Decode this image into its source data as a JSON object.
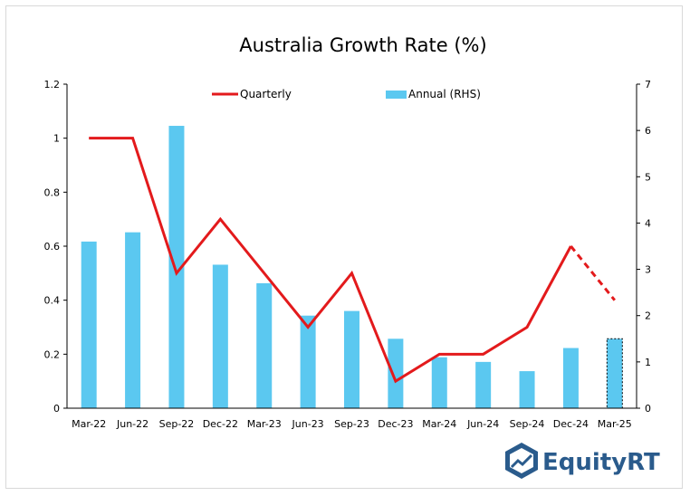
{
  "chart_data": {
    "type": "bar+line",
    "title": "Australia Growth Rate (%)",
    "categories": [
      "Mar-22",
      "Jun-22",
      "Sep-22",
      "Dec-22",
      "Mar-23",
      "Jun-23",
      "Sep-23",
      "Dec-23",
      "Mar-24",
      "Jun-24",
      "Sep-24",
      "Dec-24",
      "Mar-25"
    ],
    "series": [
      {
        "name": "Quarterly",
        "type": "line",
        "axis": "left",
        "color": "#e31a1c",
        "values": [
          1.0,
          1.0,
          0.5,
          0.7,
          0.5,
          0.3,
          0.5,
          0.1,
          0.2,
          0.2,
          0.3,
          0.6,
          0.4
        ],
        "dashed_from_index": 11
      },
      {
        "name": "Annual (RHS)",
        "type": "bar",
        "axis": "right",
        "color": "#5bc8f0",
        "values": [
          3.6,
          3.8,
          6.1,
          3.1,
          2.7,
          2.0,
          2.1,
          1.5,
          1.1,
          1.0,
          0.8,
          1.3,
          1.5
        ],
        "dashed_outline_index": 12
      }
    ],
    "left_axis": {
      "ylim": [
        0,
        1.2
      ],
      "ticks": [
        "0",
        "0.2",
        "0.4",
        "0.6",
        "0.8",
        "1",
        "1.2"
      ]
    },
    "right_axis": {
      "ylim": [
        0,
        7
      ],
      "ticks": [
        "0",
        "1",
        "2",
        "3",
        "4",
        "5",
        "6",
        "7"
      ]
    },
    "legend_position": "top-center",
    "grid": false
  },
  "branding": {
    "logo_text_1": "Equity",
    "logo_text_2": "RT",
    "brand_color": "#2a5b8c"
  }
}
